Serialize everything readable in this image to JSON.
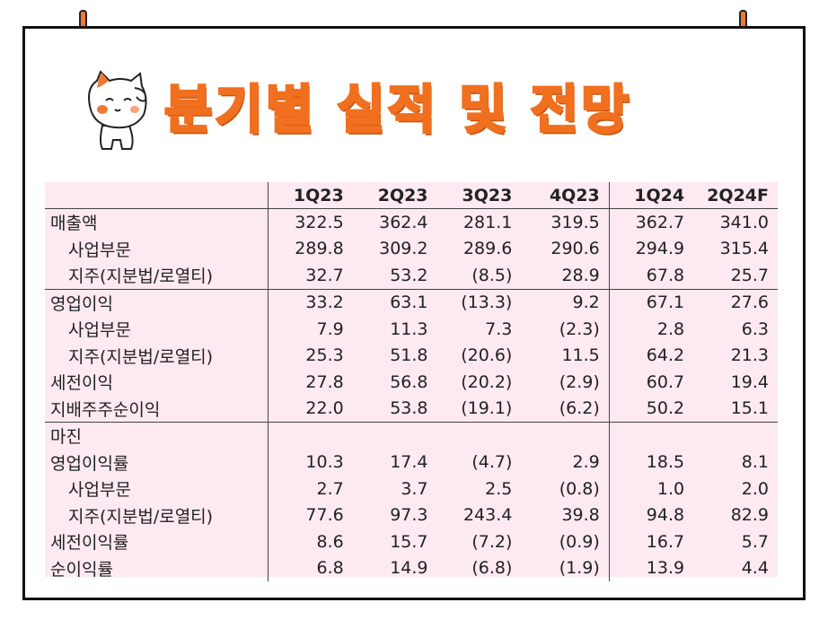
{
  "title": "분기별 실적 및 전망",
  "colors": {
    "title": "#f07020",
    "table_bg": "#fde9f1",
    "pin": "#f07a35"
  },
  "icons": {
    "mascot": "cat-saluting-mascot-icon",
    "pins": "pushpin-icon"
  },
  "table": {
    "headers": [
      "",
      "1Q23",
      "2Q23",
      "3Q23",
      "4Q23",
      "1Q24",
      "2Q24F"
    ],
    "rows": [
      {
        "label": "매출액",
        "indent": false,
        "values": [
          "322.5",
          "362.4",
          "281.1",
          "319.5",
          "362.7",
          "341.0"
        ]
      },
      {
        "label": "사업부문",
        "indent": true,
        "values": [
          "289.8",
          "309.2",
          "289.6",
          "290.6",
          "294.9",
          "315.4"
        ]
      },
      {
        "label": "지주(지분법/로열티)",
        "indent": true,
        "values": [
          "32.7",
          "53.2",
          "(8.5)",
          "28.9",
          "67.8",
          "25.7"
        ]
      },
      {
        "label": "영업이익",
        "indent": false,
        "values": [
          "33.2",
          "63.1",
          "(13.3)",
          "9.2",
          "67.1",
          "27.6"
        ]
      },
      {
        "label": "사업부문",
        "indent": true,
        "values": [
          "7.9",
          "11.3",
          "7.3",
          "(2.3)",
          "2.8",
          "6.3"
        ]
      },
      {
        "label": "지주(지분법/로열티)",
        "indent": true,
        "values": [
          "25.3",
          "51.8",
          "(20.6)",
          "11.5",
          "64.2",
          "21.3"
        ]
      },
      {
        "label": "세전이익",
        "indent": false,
        "values": [
          "27.8",
          "56.8",
          "(20.2)",
          "(2.9)",
          "60.7",
          "19.4"
        ]
      },
      {
        "label": "지배주주순이익",
        "indent": false,
        "values": [
          "22.0",
          "53.8",
          "(19.1)",
          "(6.2)",
          "50.2",
          "15.1"
        ]
      },
      {
        "label": "마진",
        "indent": false,
        "values": [
          "",
          "",
          "",
          "",
          "",
          ""
        ]
      },
      {
        "label": "영업이익률",
        "indent": false,
        "values": [
          "10.3",
          "17.4",
          "(4.7)",
          "2.9",
          "18.5",
          "8.1"
        ]
      },
      {
        "label": "사업부문",
        "indent": true,
        "values": [
          "2.7",
          "3.7",
          "2.5",
          "(0.8)",
          "1.0",
          "2.0"
        ]
      },
      {
        "label": "지주(지분법/로열티)",
        "indent": true,
        "values": [
          "77.6",
          "97.3",
          "243.4",
          "39.8",
          "94.8",
          "82.9"
        ]
      },
      {
        "label": "세전이익률",
        "indent": false,
        "values": [
          "8.6",
          "15.7",
          "(7.2)",
          "(0.9)",
          "16.7",
          "5.7"
        ]
      },
      {
        "label": "순이익률",
        "indent": false,
        "values": [
          "6.8",
          "14.9",
          "(6.8)",
          "(1.9)",
          "13.9",
          "4.4"
        ]
      }
    ]
  }
}
